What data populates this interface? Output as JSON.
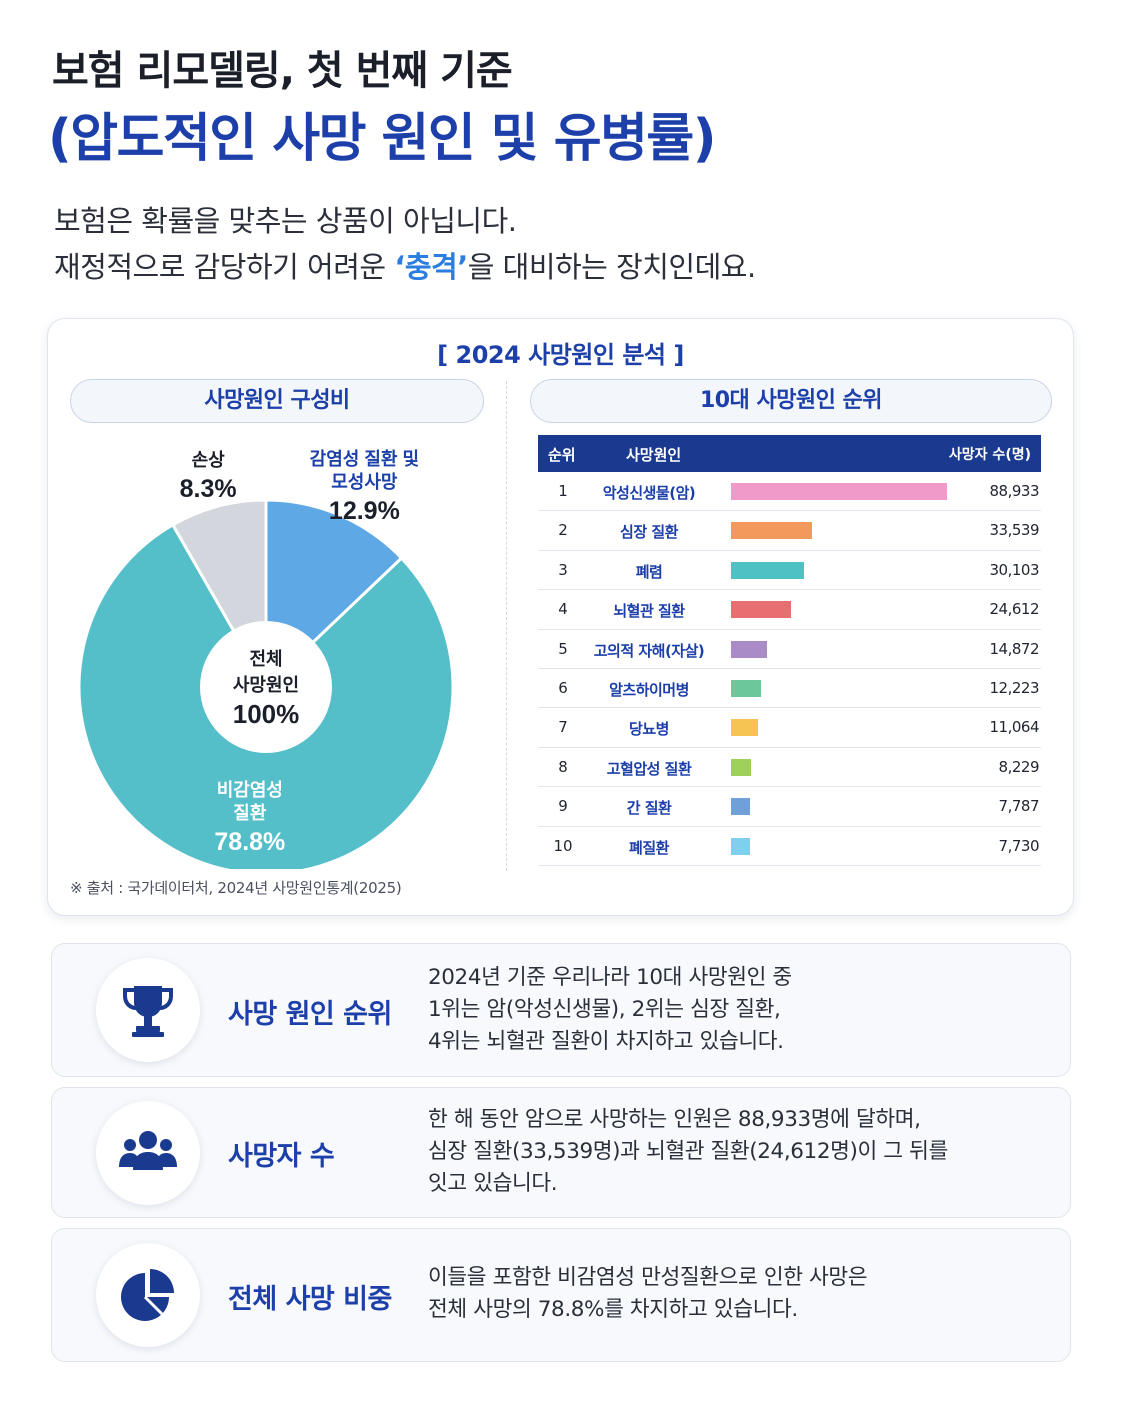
{
  "header": {
    "title_line1": "보험 리모델링, 첫 번째 기준",
    "title_line2": "(압도적인 사망 원인 및 유병률)",
    "intro_line1": "보험은 확률을 맞추는 상품이 아닙니다.",
    "intro_line2_pre": "재정적으로 감당하기 어려운 ",
    "intro_line2_highlight": "‘충격’",
    "intro_line2_post": "을 대비하는 장치인데요."
  },
  "card": {
    "title": "[ 2024 사망원인 분석 ]",
    "left_pill": "사망원인 구성비",
    "right_pill": "10대 사망원인 순위",
    "source": "※ 출처 : 국가데이터처, 2024년 사망원인통계(2025)"
  },
  "donut_center": {
    "line1": "전체",
    "line2": "사망원인",
    "value": "100%"
  },
  "table_headers": {
    "rank": "순위",
    "cause": "사망원인",
    "count": "사망자 수(명)"
  },
  "chart_data": [
    {
      "type": "pie",
      "title": "사망원인 구성비",
      "slices": [
        {
          "label": "감염성 질환 및 모성사망",
          "label_lines": [
            "감염성 질환 및",
            "모성사망"
          ],
          "value": 12.9,
          "display": "12.9%",
          "color": "#5ea8e6"
        },
        {
          "label": "비감염성 질환",
          "label_lines": [
            "비감염성",
            "질환"
          ],
          "value": 78.8,
          "display": "78.8%",
          "color": "#55bfc9"
        },
        {
          "label": "손상",
          "label_lines": [
            "손상"
          ],
          "value": 8.3,
          "display": "8.3%",
          "color": "#d3d6dc"
        }
      ]
    },
    {
      "type": "bar",
      "title": "10대 사망원인 순위",
      "orientation": "horizontal",
      "categories": [
        "악성신생물(암)",
        "심장 질환",
        "폐렴",
        "뇌혈관 질환",
        "고의적 자해(자살)",
        "알츠하이머병",
        "당뇨병",
        "고혈압성 질환",
        "간 질환",
        "폐질환"
      ],
      "ranks": [
        "1",
        "2",
        "3",
        "4",
        "5",
        "6",
        "7",
        "8",
        "9",
        "10"
      ],
      "values": [
        88933,
        33539,
        30103,
        24612,
        14872,
        12223,
        11064,
        8229,
        7787,
        7730
      ],
      "value_labels": [
        "88,933",
        "33,539",
        "30,103",
        "24,612",
        "14,872",
        "12,223",
        "11,064",
        "8,229",
        "7,787",
        "7,730"
      ],
      "colors": [
        "#ef9ac8",
        "#f29a5e",
        "#4cc2c4",
        "#e96e72",
        "#a98bc8",
        "#6cc79b",
        "#f5c453",
        "#9dd15a",
        "#6fa0d8",
        "#7fcfee"
      ]
    }
  ],
  "info_cards": [
    {
      "icon": "trophy-icon",
      "label": "사망 원인 순위",
      "lines": [
        "2024년 기준 우리나라 10대 사망원인 중",
        "1위는 암(악성신생물), 2위는 심장 질환,",
        "4위는 뇌혈관 질환이 차지하고 있습니다."
      ]
    },
    {
      "icon": "people-group-icon",
      "label": "사망자 수",
      "lines": [
        "한 해 동안 암으로 사망하는 인원은 88,933명에 달하며,",
        "심장 질환(33,539명)과 뇌혈관 질환(24,612명)이 그 뒤를",
        "잇고 있습니다."
      ]
    },
    {
      "icon": "pie-chart-icon",
      "label": "전체 사망 비중",
      "lines": [
        "이들을 포함한 비감염성 만성질환으로 인한 사망은",
        "전체 사망의 78.8%를 차지하고 있습니다."
      ]
    }
  ],
  "colors": {
    "brand_blue": "#1c3faa",
    "accent_blue": "#2b7de0",
    "table_header": "#1a3a8f"
  }
}
